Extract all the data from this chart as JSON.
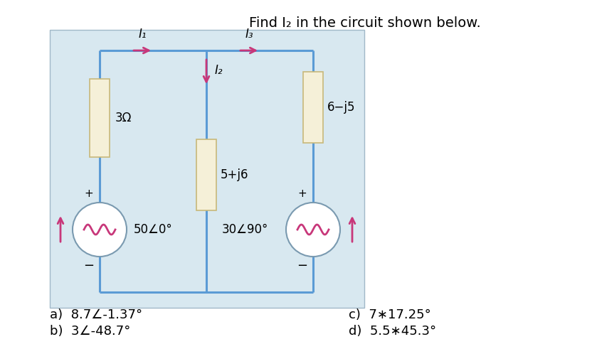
{
  "title": "Find I₂ in the circuit shown below.",
  "title_fontsize": 14,
  "wire_color": "#5b9bd5",
  "wire_lw": 2.2,
  "resistor_fill": "#f5f0d8",
  "resistor_edge": "#c8b87a",
  "source_edge": "#7a9ab0",
  "source_color": "#c8377a",
  "arrow_color": "#c8377a",
  "circuit_bg": "#d8e8f0",
  "answer_fontsize": 13,
  "answers": {
    "a": "8.7∠-1.37°",
    "b": "3∠-48.7°",
    "c": "7∗17.25°",
    "d": "5.5∗45.3°"
  },
  "labels": {
    "I1": "I₁",
    "I2": "I₂",
    "I3": "I₃",
    "R1": "3Ω",
    "R2": "5+j6",
    "R3": "6−j5",
    "VS1": "50∠0°",
    "VS2": "30∠90°"
  }
}
